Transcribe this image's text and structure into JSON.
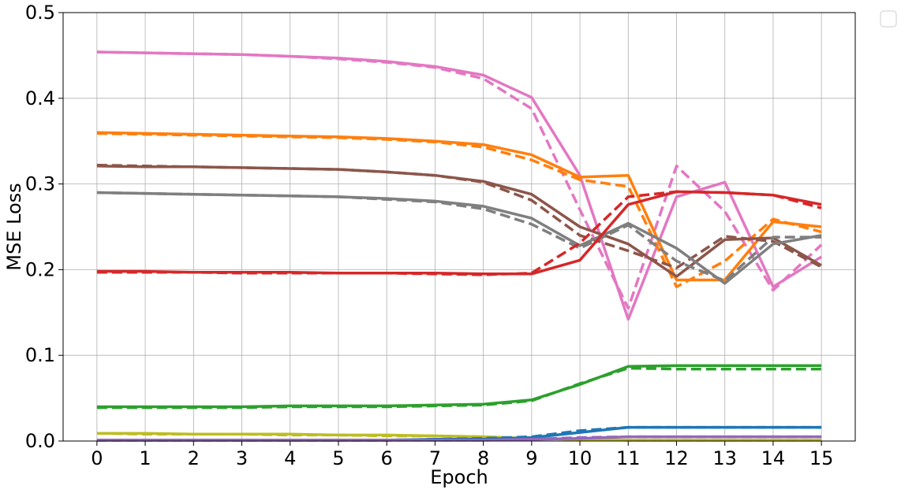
{
  "chart_data": {
    "type": "line",
    "title": "",
    "xlabel": "Epoch",
    "ylabel": "MSE Loss",
    "xlim": [
      -0.7,
      15.7
    ],
    "ylim": [
      0,
      0.5
    ],
    "x": [
      0,
      1,
      2,
      3,
      4,
      5,
      6,
      7,
      8,
      9,
      10,
      11,
      12,
      13,
      14,
      15
    ],
    "x_ticks": [
      "0",
      "1",
      "2",
      "3",
      "4",
      "5",
      "6",
      "7",
      "8",
      "9",
      "10",
      "11",
      "12",
      "13",
      "14",
      "15"
    ],
    "y_ticks": [
      "0.0",
      "0.1",
      "0.2",
      "0.3",
      "0.4",
      "0.5"
    ],
    "y_tick_values": [
      0,
      0.1,
      0.2,
      0.3,
      0.4,
      0.5
    ],
    "grid": true,
    "legend": "top-right outside (empty)",
    "series": [
      {
        "color": "#e377c2",
        "style": "solid",
        "values": [
          0.454,
          0.453,
          0.452,
          0.451,
          0.449,
          0.447,
          0.443,
          0.437,
          0.427,
          0.401,
          0.31,
          0.142,
          0.285,
          0.302,
          0.18,
          0.215
        ]
      },
      {
        "color": "#e377c2",
        "style": "dashed",
        "values": [
          0.454,
          0.453,
          0.452,
          0.451,
          0.449,
          0.446,
          0.442,
          0.436,
          0.423,
          0.388,
          0.27,
          0.155,
          0.321,
          0.268,
          0.176,
          0.229
        ]
      },
      {
        "color": "#ff7f0e",
        "style": "solid",
        "values": [
          0.36,
          0.359,
          0.358,
          0.357,
          0.356,
          0.355,
          0.353,
          0.35,
          0.346,
          0.334,
          0.308,
          0.31,
          0.188,
          0.188,
          0.256,
          0.25
        ]
      },
      {
        "color": "#ff7f0e",
        "style": "dashed",
        "values": [
          0.359,
          0.358,
          0.357,
          0.356,
          0.355,
          0.354,
          0.352,
          0.349,
          0.343,
          0.328,
          0.305,
          0.297,
          0.18,
          0.21,
          0.259,
          0.244
        ]
      },
      {
        "color": "#8c564b",
        "style": "solid",
        "values": [
          0.321,
          0.32,
          0.32,
          0.319,
          0.318,
          0.317,
          0.314,
          0.31,
          0.303,
          0.288,
          0.25,
          0.23,
          0.192,
          0.235,
          0.237,
          0.205
        ]
      },
      {
        "color": "#8c564b",
        "style": "dashed",
        "values": [
          0.322,
          0.321,
          0.32,
          0.319,
          0.318,
          0.317,
          0.314,
          0.31,
          0.302,
          0.281,
          0.24,
          0.222,
          0.202,
          0.239,
          0.233,
          0.203
        ]
      },
      {
        "color": "#7f7f7f",
        "style": "solid",
        "values": [
          0.29,
          0.289,
          0.288,
          0.287,
          0.286,
          0.285,
          0.283,
          0.28,
          0.274,
          0.26,
          0.228,
          0.254,
          0.225,
          0.184,
          0.23,
          0.24
        ]
      },
      {
        "color": "#7f7f7f",
        "style": "dashed",
        "values": [
          0.29,
          0.289,
          0.288,
          0.287,
          0.286,
          0.285,
          0.282,
          0.279,
          0.271,
          0.253,
          0.225,
          0.252,
          0.21,
          0.187,
          0.238,
          0.238
        ]
      },
      {
        "color": "#d62728",
        "style": "solid",
        "values": [
          0.198,
          0.198,
          0.197,
          0.197,
          0.197,
          0.196,
          0.196,
          0.196,
          0.195,
          0.195,
          0.211,
          0.276,
          0.291,
          0.29,
          0.287,
          0.276
        ]
      },
      {
        "color": "#d62728",
        "style": "dashed",
        "values": [
          0.197,
          0.197,
          0.197,
          0.196,
          0.196,
          0.196,
          0.196,
          0.195,
          0.194,
          0.196,
          0.231,
          0.285,
          0.291,
          0.29,
          0.287,
          0.272
        ]
      },
      {
        "color": "#2ca02c",
        "style": "solid",
        "values": [
          0.04,
          0.04,
          0.04,
          0.04,
          0.041,
          0.041,
          0.041,
          0.042,
          0.043,
          0.048,
          0.066,
          0.087,
          0.088,
          0.088,
          0.088,
          0.088
        ]
      },
      {
        "color": "#2ca02c",
        "style": "dashed",
        "values": [
          0.039,
          0.039,
          0.039,
          0.039,
          0.04,
          0.04,
          0.04,
          0.041,
          0.042,
          0.047,
          0.067,
          0.085,
          0.084,
          0.084,
          0.084,
          0.084
        ]
      },
      {
        "color": "#bcbd22",
        "style": "solid",
        "values": [
          0.009,
          0.009,
          0.008,
          0.008,
          0.008,
          0.007,
          0.007,
          0.006,
          0.005,
          0.003,
          0.002,
          0.001,
          0.001,
          0.001,
          0.001,
          0.001
        ]
      },
      {
        "color": "#bcbd22",
        "style": "dashed",
        "values": [
          0.009,
          0.008,
          0.008,
          0.008,
          0.007,
          0.007,
          0.006,
          0.006,
          0.005,
          0.003,
          0.002,
          0.001,
          0.001,
          0.001,
          0.001,
          0.001
        ]
      },
      {
        "color": "#1f77b4",
        "style": "solid",
        "values": [
          0.001,
          0.001,
          0.001,
          0.001,
          0.001,
          0.001,
          0.001,
          0.002,
          0.002,
          0.004,
          0.01,
          0.016,
          0.016,
          0.016,
          0.016,
          0.016
        ]
      },
      {
        "color": "#1f77b4",
        "style": "dashed",
        "values": [
          0.001,
          0.001,
          0.001,
          0.001,
          0.001,
          0.001,
          0.001,
          0.002,
          0.003,
          0.005,
          0.012,
          0.016,
          0.016,
          0.016,
          0.016,
          0.016
        ]
      },
      {
        "color": "#9467bd",
        "style": "solid",
        "values": [
          0.001,
          0.001,
          0.001,
          0.001,
          0.001,
          0.001,
          0.001,
          0.001,
          0.001,
          0.002,
          0.003,
          0.005,
          0.005,
          0.005,
          0.005,
          0.005
        ]
      },
      {
        "color": "#9467bd",
        "style": "dashed",
        "values": [
          0.001,
          0.001,
          0.001,
          0.001,
          0.001,
          0.001,
          0.001,
          0.001,
          0.001,
          0.002,
          0.004,
          0.005,
          0.005,
          0.005,
          0.005,
          0.005
        ]
      }
    ]
  }
}
